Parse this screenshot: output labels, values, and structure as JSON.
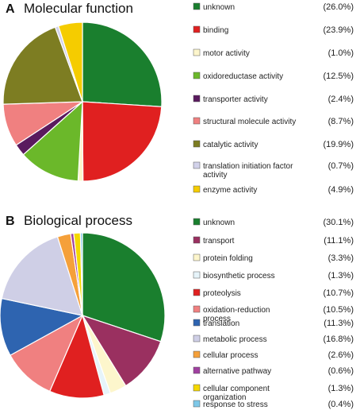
{
  "chart_data": [
    {
      "type": "pie",
      "panel": "A",
      "title": "Molecular function",
      "slices": [
        {
          "label": "unknown",
          "pct_label": "(26.0%)",
          "value": 26.0,
          "color": "#1a7f2e"
        },
        {
          "label": "binding",
          "pct_label": "(23.9%)",
          "value": 23.9,
          "color": "#e02020"
        },
        {
          "label": "motor activity",
          "pct_label": "(1.0%)",
          "value": 1.0,
          "color": "#fdf6cc"
        },
        {
          "label": "oxidoreductase activity",
          "pct_label": "(12.5%)",
          "value": 12.5,
          "color": "#6bb82a"
        },
        {
          "label": "transporter activity",
          "pct_label": "(2.4%)",
          "value": 2.4,
          "color": "#5a1a5e"
        },
        {
          "label": "structural molecule activity",
          "pct_label": "(8.7%)",
          "value": 8.7,
          "color": "#f08080"
        },
        {
          "label": "catalytic activity",
          "pct_label": "(19.9%)",
          "value": 19.9,
          "color": "#7d7d22"
        },
        {
          "label": [
            "translation initiation factor",
            "activity"
          ],
          "pct_label": "(0.7%)",
          "value": 0.7,
          "color": "#d2d2ea"
        },
        {
          "label": "enzyme activity",
          "pct_label": "(4.9%)",
          "value": 4.9,
          "color": "#f5cc00"
        }
      ]
    },
    {
      "type": "pie",
      "panel": "B",
      "title": "Biological process",
      "slices": [
        {
          "label": "unknown",
          "pct_label": "(30.1%)",
          "value": 30.1,
          "color": "#1a7f2e"
        },
        {
          "label": "transport",
          "pct_label": "(11.1%)",
          "value": 11.1,
          "color": "#9a3060"
        },
        {
          "label": "protein folding",
          "pct_label": "(3.3%)",
          "value": 3.3,
          "color": "#fdf6cc"
        },
        {
          "label": "biosynthetic process",
          "pct_label": "(1.3%)",
          "value": 1.3,
          "color": "#e6f4fa"
        },
        {
          "label": "proteolysis",
          "pct_label": "(10.7%)",
          "value": 10.7,
          "color": "#e02020"
        },
        {
          "label": [
            "oxidation-reduction",
            "process"
          ],
          "pct_label": "(10.5%)",
          "value": 10.5,
          "color": "#f08080"
        },
        {
          "label": "translation",
          "pct_label": "(11.3%)",
          "value": 11.3,
          "color": "#2e64b0"
        },
        {
          "label": "metabolic process",
          "pct_label": "(16.8%)",
          "value": 16.8,
          "color": "#cfcfe6"
        },
        {
          "label": "cellular process",
          "pct_label": "(2.6%)",
          "value": 2.6,
          "color": "#f5a03a"
        },
        {
          "label": "alternative pathway",
          "pct_label": "(0.6%)",
          "value": 0.6,
          "color": "#a040a0"
        },
        {
          "label": [
            "cellular component",
            "organization"
          ],
          "pct_label": "(1.3%)",
          "value": 1.3,
          "color": "#f5d800"
        },
        {
          "label": "response to stress",
          "pct_label": "(0.4%)",
          "value": 0.4,
          "color": "#7ec8e8"
        }
      ]
    }
  ]
}
